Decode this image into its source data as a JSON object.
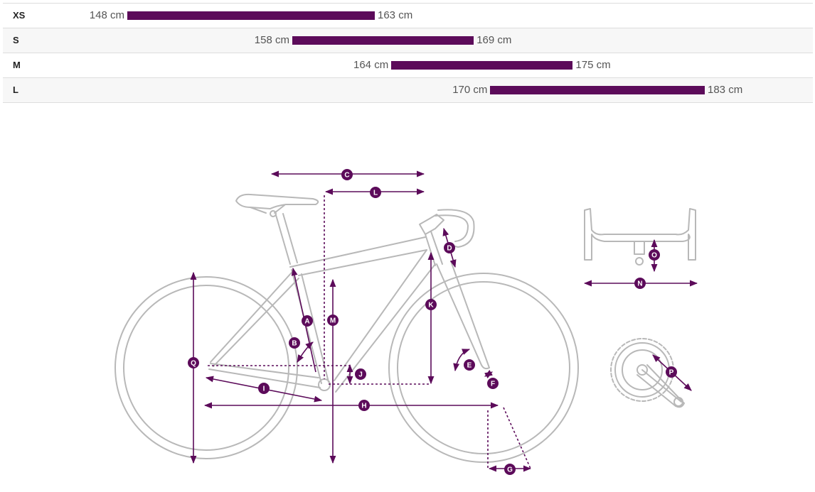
{
  "size_chart": {
    "rows": [
      {
        "size": "XS",
        "min": "148 cm",
        "max": "163 cm",
        "min_cm": 148,
        "max_cm": 163
      },
      {
        "size": "S",
        "min": "158 cm",
        "max": "169 cm",
        "min_cm": 158,
        "max_cm": 169
      },
      {
        "size": "M",
        "min": "164 cm",
        "max": "175 cm",
        "min_cm": 164,
        "max_cm": 175
      },
      {
        "size": "L",
        "min": "170 cm",
        "max": "183 cm",
        "min_cm": 170,
        "max_cm": 183
      }
    ]
  },
  "colors": {
    "accent": "#5c0b5a",
    "frame_line": "#b8b8b8",
    "row_border": "#dddddd"
  },
  "geometry_markers": {
    "A": "A",
    "B": "B",
    "C": "C",
    "D": "D",
    "E": "E",
    "F": "F",
    "G": "G",
    "H": "H",
    "I": "I",
    "J": "J",
    "K": "K",
    "L": "L",
    "M": "M",
    "N": "N",
    "O": "O",
    "P": "P",
    "Q": "Q"
  }
}
